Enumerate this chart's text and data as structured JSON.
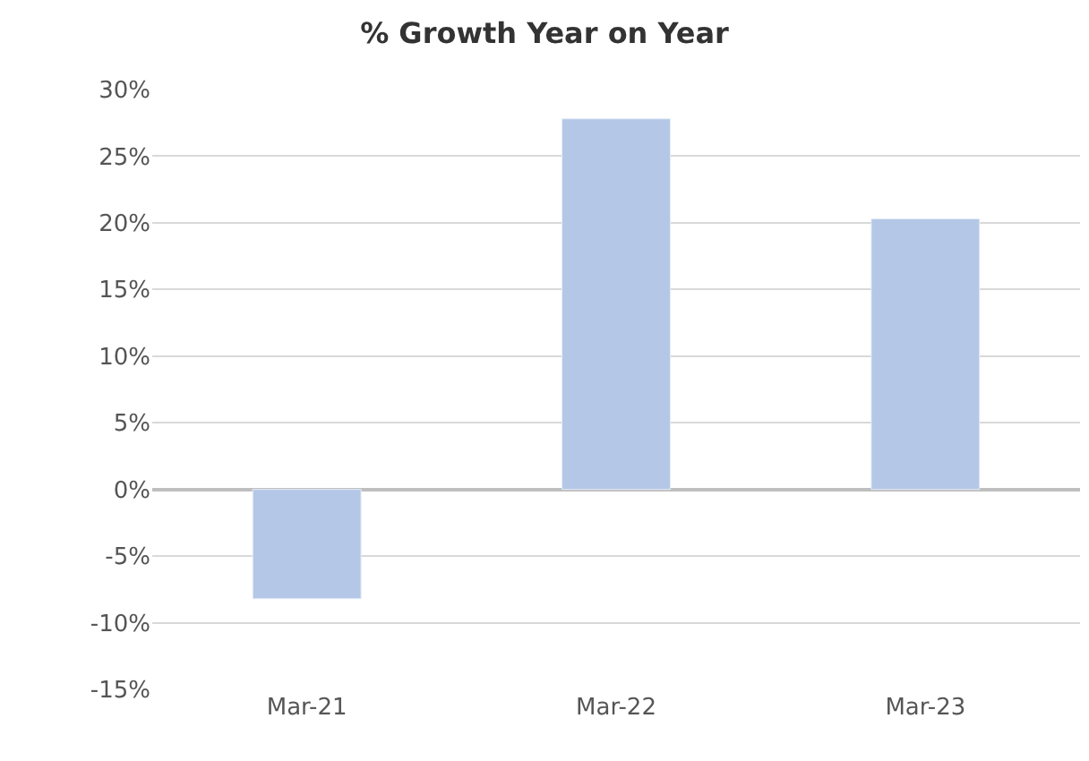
{
  "chart_data": {
    "type": "bar",
    "title": "% Growth Year on Year",
    "categories": [
      "Mar-21",
      "Mar-22",
      "Mar-23"
    ],
    "values": [
      -8.2,
      27.8,
      20.3
    ],
    "color": "#b4c7e7",
    "ylim": [
      -15,
      30
    ],
    "yticks": [
      {
        "value": -15,
        "label": "-15%"
      },
      {
        "value": -10,
        "label": "-10%"
      },
      {
        "value": -5,
        "label": "-5%"
      },
      {
        "value": 0,
        "label": "0%"
      },
      {
        "value": 5,
        "label": "5%"
      },
      {
        "value": 10,
        "label": "10%"
      },
      {
        "value": 15,
        "label": "15%"
      },
      {
        "value": 20,
        "label": "20%"
      },
      {
        "value": 25,
        "label": "25%"
      },
      {
        "value": 30,
        "label": "30%"
      }
    ],
    "grid": "y"
  }
}
